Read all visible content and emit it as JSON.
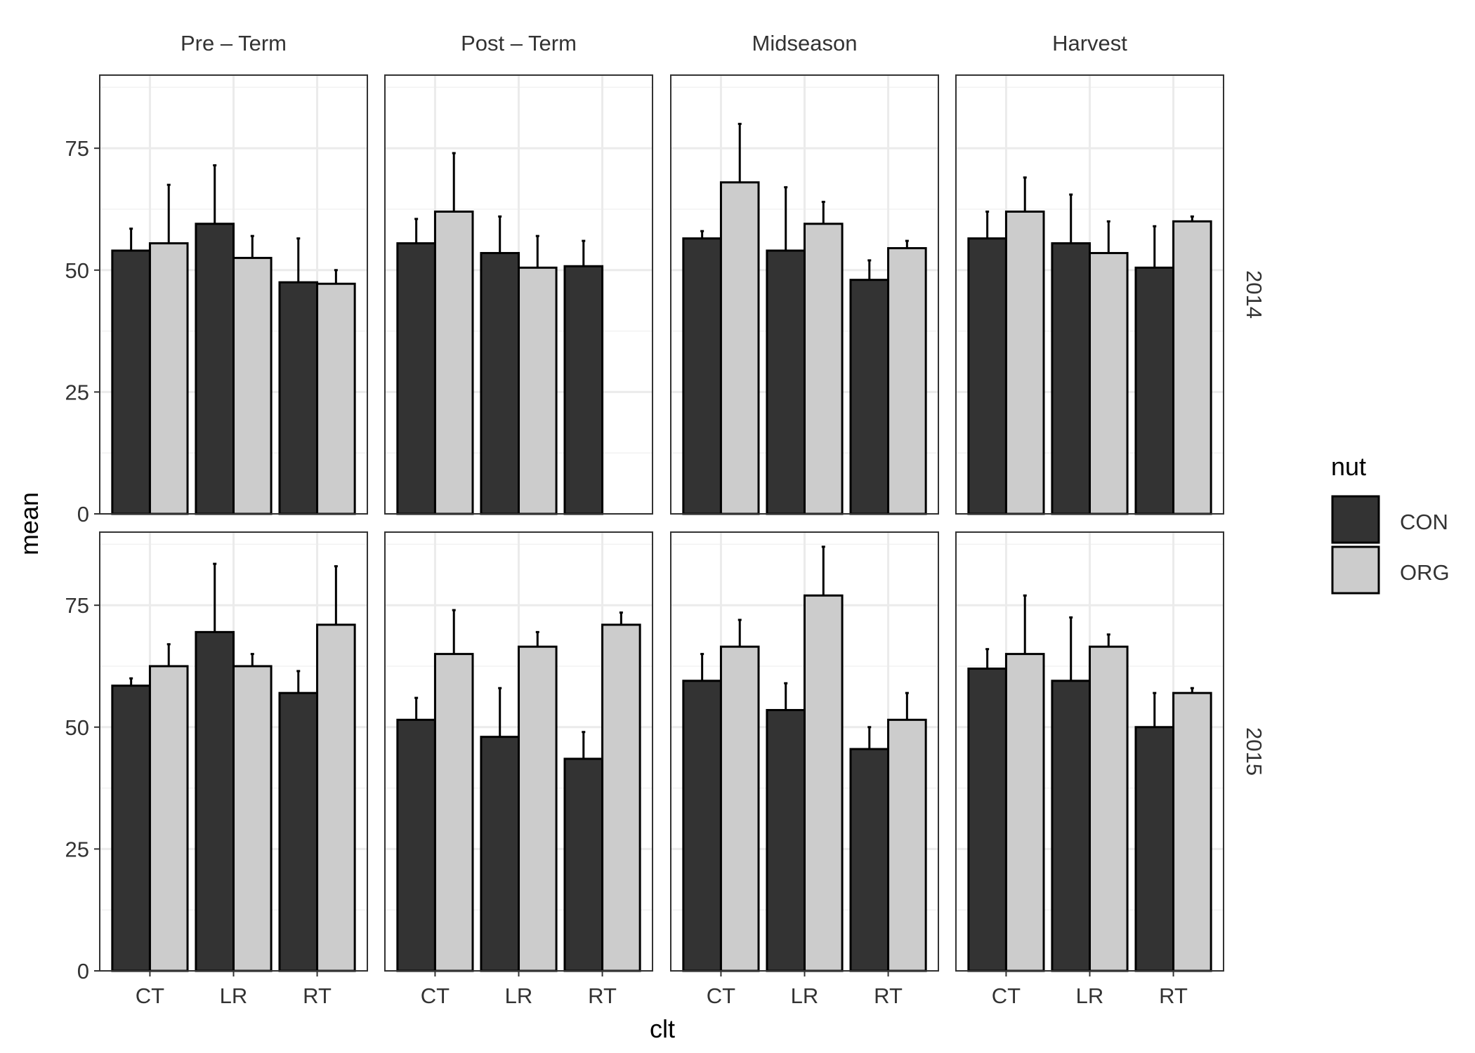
{
  "chart_data": {
    "type": "bar",
    "xlabel": "clt",
    "ylabel": "mean",
    "ylim": [
      0,
      90
    ],
    "yticks": [
      0,
      25,
      50,
      75
    ],
    "grid": true,
    "categories": [
      "CT",
      "LR",
      "RT"
    ],
    "facet_columns": [
      "Pre – Term",
      "Post – Term",
      "Midseason",
      "Harvest"
    ],
    "facet_rows": [
      "2014",
      "2015"
    ],
    "legend": {
      "title": "nut",
      "placement": "right",
      "entries": [
        {
          "name": "CON",
          "color": "#333333"
        },
        {
          "name": "ORG",
          "color": "#cccccc"
        }
      ]
    },
    "panels": [
      {
        "year": "2014",
        "stage": "Pre – Term",
        "series": [
          {
            "name": "CON",
            "values": [
              54,
              59.5,
              47.5
            ],
            "error_upper": [
              58.5,
              71.5,
              56.5
            ]
          },
          {
            "name": "ORG",
            "values": [
              55.5,
              52.5,
              47.2
            ],
            "error_upper": [
              67.5,
              57,
              50
            ]
          }
        ]
      },
      {
        "year": "2014",
        "stage": "Post – Term",
        "series": [
          {
            "name": "CON",
            "values": [
              55.5,
              53.5,
              50.8
            ],
            "error_upper": [
              60.5,
              61,
              56
            ]
          },
          {
            "name": "ORG",
            "values": [
              62,
              50.5,
              null
            ],
            "error_upper": [
              74,
              57,
              null
            ]
          }
        ]
      },
      {
        "year": "2014",
        "stage": "Midseason",
        "series": [
          {
            "name": "CON",
            "values": [
              56.5,
              54,
              48
            ],
            "error_upper": [
              58,
              67,
              52
            ]
          },
          {
            "name": "ORG",
            "values": [
              68,
              59.5,
              54.5
            ],
            "error_upper": [
              80,
              64,
              56
            ]
          }
        ]
      },
      {
        "year": "2014",
        "stage": "Harvest",
        "series": [
          {
            "name": "CON",
            "values": [
              56.5,
              55.5,
              50.5
            ],
            "error_upper": [
              62,
              65.5,
              59
            ]
          },
          {
            "name": "ORG",
            "values": [
              62,
              53.5,
              60
            ],
            "error_upper": [
              69,
              60,
              61
            ]
          }
        ]
      },
      {
        "year": "2015",
        "stage": "Pre – Term",
        "series": [
          {
            "name": "CON",
            "values": [
              58.5,
              69.5,
              57
            ],
            "error_upper": [
              60,
              83.5,
              61.5
            ]
          },
          {
            "name": "ORG",
            "values": [
              62.5,
              62.5,
              71
            ],
            "error_upper": [
              67,
              65,
              83
            ]
          }
        ]
      },
      {
        "year": "2015",
        "stage": "Post – Term",
        "series": [
          {
            "name": "CON",
            "values": [
              51.5,
              48,
              43.5
            ],
            "error_upper": [
              56,
              58,
              49
            ]
          },
          {
            "name": "ORG",
            "values": [
              65,
              66.5,
              71
            ],
            "error_upper": [
              74,
              69.5,
              73.5
            ]
          }
        ]
      },
      {
        "year": "2015",
        "stage": "Midseason",
        "series": [
          {
            "name": "CON",
            "values": [
              59.5,
              53.5,
              45.5
            ],
            "error_upper": [
              65,
              59,
              50
            ]
          },
          {
            "name": "ORG",
            "values": [
              66.5,
              77,
              51.5
            ],
            "error_upper": [
              72,
              87,
              57
            ]
          }
        ]
      },
      {
        "year": "2015",
        "stage": "Harvest",
        "series": [
          {
            "name": "CON",
            "values": [
              62,
              59.5,
              50
            ],
            "error_upper": [
              66,
              72.5,
              57
            ]
          },
          {
            "name": "ORG",
            "values": [
              65,
              66.5,
              57
            ],
            "error_upper": [
              77,
              69,
              58
            ]
          }
        ]
      }
    ]
  }
}
